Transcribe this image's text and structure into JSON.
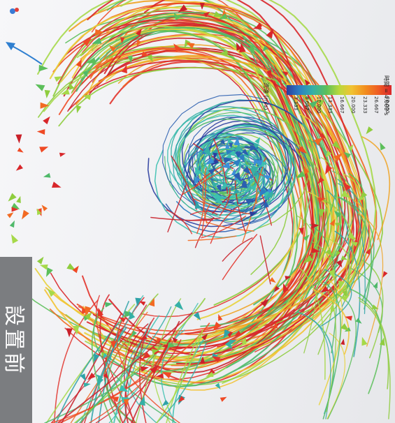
{
  "caption": {
    "text": "設置前"
  },
  "legend": {
    "title": "時間 = 4.000 s",
    "subtitle": "流速 (m/s)",
    "ticks": [
      "30.000",
      "26.667",
      "23.333",
      "20.000",
      "16.667",
      "13.333",
      "10.000",
      "6.667",
      "3.333"
    ]
  },
  "colors": {
    "high": "#d8262a",
    "mid": "#b9d83c",
    "low": "#2b3e9e",
    "caption_box": "#7b7d80"
  },
  "icons": {
    "corner_logo": "vortex-logo-icon"
  }
}
